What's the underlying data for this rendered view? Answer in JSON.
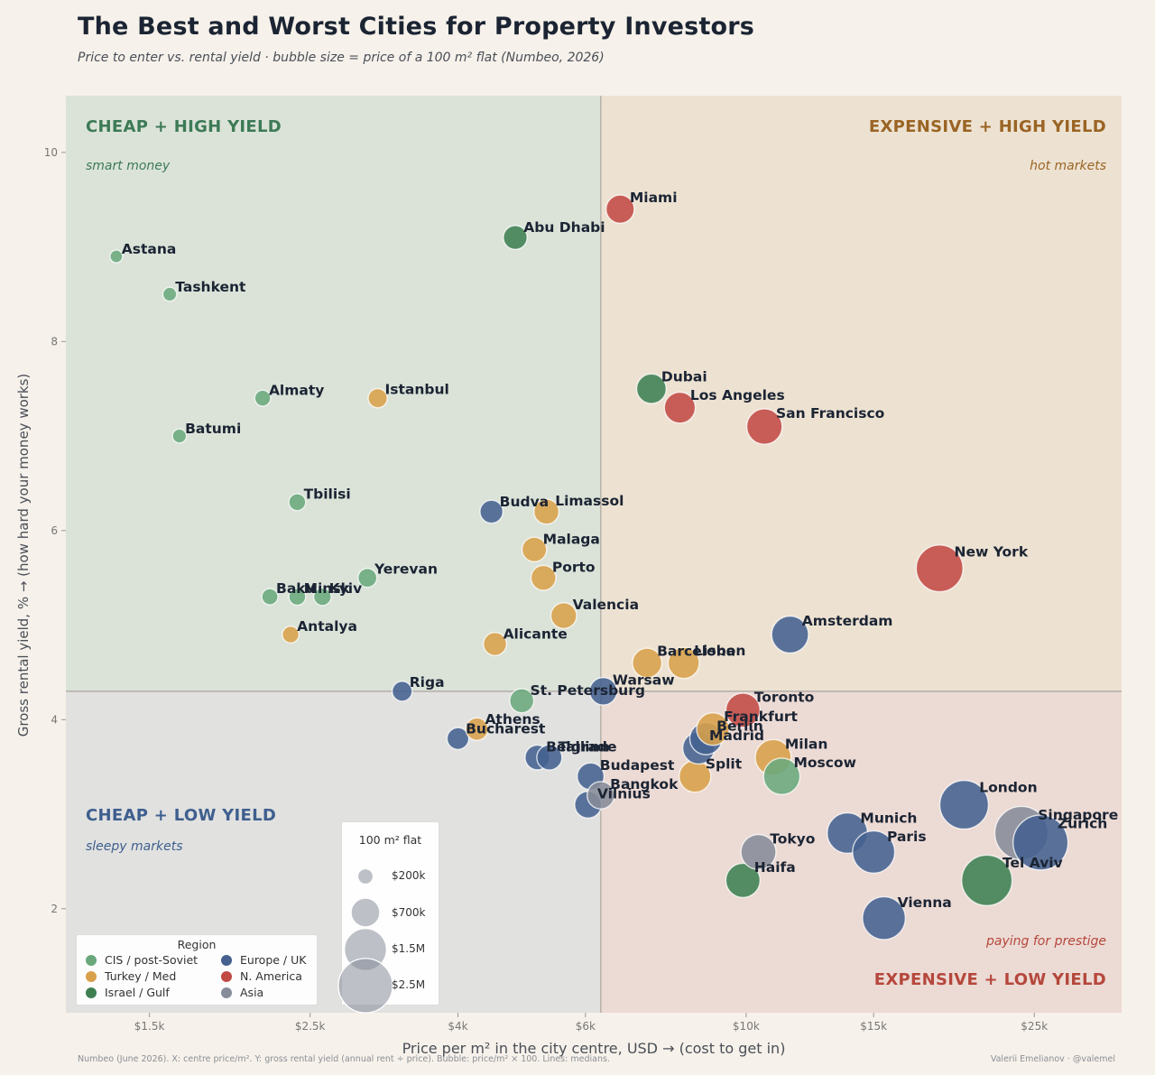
{
  "title": "The Best and Worst Cities for Property Investors",
  "subtitle": "Price to enter vs. rental yield · bubble size = price of a 100 m² flat (Numbeo, 2026)",
  "footer_left": "Numbeo (June 2026). X: centre price/m². Y: gross rental yield (annual rent ÷ price). Bubble: price/m² × 100. Lines: medians.",
  "footer_right": "Valerii Emelianov · @valemel",
  "quadrants": {
    "top_left": {
      "title": "CHEAP  +  HIGH YIELD",
      "subtitle": "smart money",
      "color": "#3d7a56"
    },
    "top_right": {
      "title": "EXPENSIVE  +  HIGH YIELD",
      "subtitle": "hot markets",
      "color": "#9a6424"
    },
    "bottom_left": {
      "title": "CHEAP  +  LOW YIELD",
      "subtitle": "sleepy markets",
      "color": "#3e5f8e"
    },
    "bottom_right": {
      "title": "EXPENSIVE  +  LOW YIELD",
      "subtitle": "paying for prestige",
      "color": "#b5473c"
    }
  },
  "region_legend": {
    "title": "Region",
    "items": [
      {
        "label": "CIS / post-Soviet",
        "color": "#6aa87c"
      },
      {
        "label": "Europe / UK",
        "color": "#44618f"
      },
      {
        "label": "Turkey / Med",
        "color": "#d8a04a"
      },
      {
        "label": "N. America",
        "color": "#c24a44"
      },
      {
        "label": "Israel / Gulf",
        "color": "#3e7f52"
      },
      {
        "label": "Asia",
        "color": "#868c99"
      }
    ]
  },
  "size_legend": {
    "title": "100 m² flat",
    "items": [
      {
        "label": "$200k",
        "price": 200000
      },
      {
        "label": "$700k",
        "price": 700000
      },
      {
        "label": "$1.5M",
        "price": 1500000
      },
      {
        "label": "$2.5M",
        "price": 2500000
      }
    ]
  },
  "chart_data": {
    "type": "scatter",
    "title": "The Best and Worst Cities for Property Investors",
    "xlabel": "Price per m² in the city centre, USD  →  (cost to get in)",
    "ylabel": "Gross rental yield, %  →  (how hard your money works)",
    "x_scale": "log",
    "xlim": [
      1150,
      33000
    ],
    "ylim": [
      0.9,
      10.6
    ],
    "x_ticks": [
      1500,
      2500,
      4000,
      6000,
      10000,
      15000,
      25000
    ],
    "x_tick_labels": [
      "$1.5k",
      "$2.5k",
      "$4k",
      "$6k",
      "$10k",
      "$15k",
      "$25k"
    ],
    "y_ticks": [
      2,
      4,
      6,
      8,
      10
    ],
    "median_x": 6300,
    "median_y": 4.3,
    "points": [
      {
        "city": "Astana",
        "region": "CIS / post-Soviet",
        "x": 1350,
        "y": 8.9
      },
      {
        "city": "Tashkent",
        "region": "CIS / post-Soviet",
        "x": 1600,
        "y": 8.5
      },
      {
        "city": "Almaty",
        "region": "CIS / post-Soviet",
        "x": 2150,
        "y": 7.4
      },
      {
        "city": "Batumi",
        "region": "CIS / post-Soviet",
        "x": 1650,
        "y": 7.0
      },
      {
        "city": "Tbilisi",
        "region": "CIS / post-Soviet",
        "x": 2400,
        "y": 6.3
      },
      {
        "city": "Minsk",
        "region": "CIS / post-Soviet",
        "x": 2400,
        "y": 5.3
      },
      {
        "city": "Baku",
        "region": "CIS / post-Soviet",
        "x": 2200,
        "y": 5.3
      },
      {
        "city": "Kyiv",
        "region": "CIS / post-Soviet",
        "x": 2600,
        "y": 5.3
      },
      {
        "city": "Yerevan",
        "region": "CIS / post-Soviet",
        "x": 3000,
        "y": 5.5
      },
      {
        "city": "St. Petersburg",
        "region": "CIS / post-Soviet",
        "x": 4900,
        "y": 4.2
      },
      {
        "city": "Moscow",
        "region": "CIS / post-Soviet",
        "x": 11200,
        "y": 3.4
      },
      {
        "city": "Istanbul",
        "region": "Turkey / Med",
        "x": 3100,
        "y": 7.4
      },
      {
        "city": "Antalya",
        "region": "Turkey / Med",
        "x": 2350,
        "y": 4.9
      },
      {
        "city": "Limassol",
        "region": "Turkey / Med",
        "x": 5300,
        "y": 6.2
      },
      {
        "city": "Malaga",
        "region": "Turkey / Med",
        "x": 5100,
        "y": 5.8
      },
      {
        "city": "Porto",
        "region": "Turkey / Med",
        "x": 5250,
        "y": 5.5
      },
      {
        "city": "Valencia",
        "region": "Turkey / Med",
        "x": 5600,
        "y": 5.1
      },
      {
        "city": "Alicante",
        "region": "Turkey / Med",
        "x": 4500,
        "y": 4.8
      },
      {
        "city": "Athens",
        "region": "Turkey / Med",
        "x": 4250,
        "y": 3.9
      },
      {
        "city": "Barcelona",
        "region": "Turkey / Med",
        "x": 7300,
        "y": 4.6
      },
      {
        "city": "Lisbon",
        "region": "Turkey / Med",
        "x": 8200,
        "y": 4.6
      },
      {
        "city": "Split",
        "region": "Turkey / Med",
        "x": 8500,
        "y": 3.4
      },
      {
        "city": "Frankfurt",
        "region": "Turkey / Med",
        "x": 9000,
        "y": 3.9
      },
      {
        "city": "Milan",
        "region": "Turkey / Med",
        "x": 10900,
        "y": 3.6
      },
      {
        "city": "Abu Dhabi",
        "region": "Israel / Gulf",
        "x": 4800,
        "y": 9.1
      },
      {
        "city": "Dubai",
        "region": "Israel / Gulf",
        "x": 7400,
        "y": 7.5
      },
      {
        "city": "Haifa",
        "region": "Israel / Gulf",
        "x": 9900,
        "y": 2.3
      },
      {
        "city": "Tel Aviv",
        "region": "Israel / Gulf",
        "x": 21500,
        "y": 2.3
      },
      {
        "city": "Budva",
        "region": "Europe / UK",
        "x": 4450,
        "y": 6.2
      },
      {
        "city": "Riga",
        "region": "Europe / UK",
        "x": 3350,
        "y": 4.3
      },
      {
        "city": "Bucharest",
        "region": "Europe / UK",
        "x": 4000,
        "y": 3.8
      },
      {
        "city": "Belgrade",
        "region": "Europe / UK",
        "x": 5150,
        "y": 3.6
      },
      {
        "city": "Tallinn",
        "region": "Europe / UK",
        "x": 5350,
        "y": 3.6
      },
      {
        "city": "Warsaw",
        "region": "Europe / UK",
        "x": 6350,
        "y": 4.3
      },
      {
        "city": "Budapest",
        "region": "Europe / UK",
        "x": 6100,
        "y": 3.4
      },
      {
        "city": "Vilnius",
        "region": "Europe / UK",
        "x": 6050,
        "y": 3.1
      },
      {
        "city": "Amsterdam",
        "region": "Europe / UK",
        "x": 11500,
        "y": 4.9
      },
      {
        "city": "Berlin",
        "region": "Europe / UK",
        "x": 8800,
        "y": 3.8
      },
      {
        "city": "Munich",
        "region": "Europe / UK",
        "x": 13800,
        "y": 2.8
      },
      {
        "city": "Paris",
        "region": "Europe / UK",
        "x": 15000,
        "y": 2.6
      },
      {
        "city": "Vienna",
        "region": "Europe / UK",
        "x": 15500,
        "y": 1.9
      },
      {
        "city": "London",
        "region": "Europe / UK",
        "x": 20000,
        "y": 3.1
      },
      {
        "city": "Zurich",
        "region": "Europe / UK",
        "x": 25500,
        "y": 2.7
      },
      {
        "city": "Miami",
        "region": "N. America",
        "x": 6700,
        "y": 9.4
      },
      {
        "city": "Los Angeles",
        "region": "N. America",
        "x": 8100,
        "y": 7.3
      },
      {
        "city": "San Francisco",
        "region": "N. America",
        "x": 10600,
        "y": 7.1
      },
      {
        "city": "New York",
        "region": "N. America",
        "x": 18500,
        "y": 5.6
      },
      {
        "city": "Toronto",
        "region": "N. America",
        "x": 9900,
        "y": 4.1
      },
      {
        "city": "Madrid",
        "region": "Europe / UK",
        "x": 8600,
        "y": 3.7
      },
      {
        "city": "Bangkok",
        "region": "Asia",
        "x": 6300,
        "y": 3.2
      },
      {
        "city": "Tokyo",
        "region": "Asia",
        "x": 10400,
        "y": 2.6
      },
      {
        "city": "Singapore",
        "region": "Asia",
        "x": 24000,
        "y": 2.8
      }
    ]
  }
}
